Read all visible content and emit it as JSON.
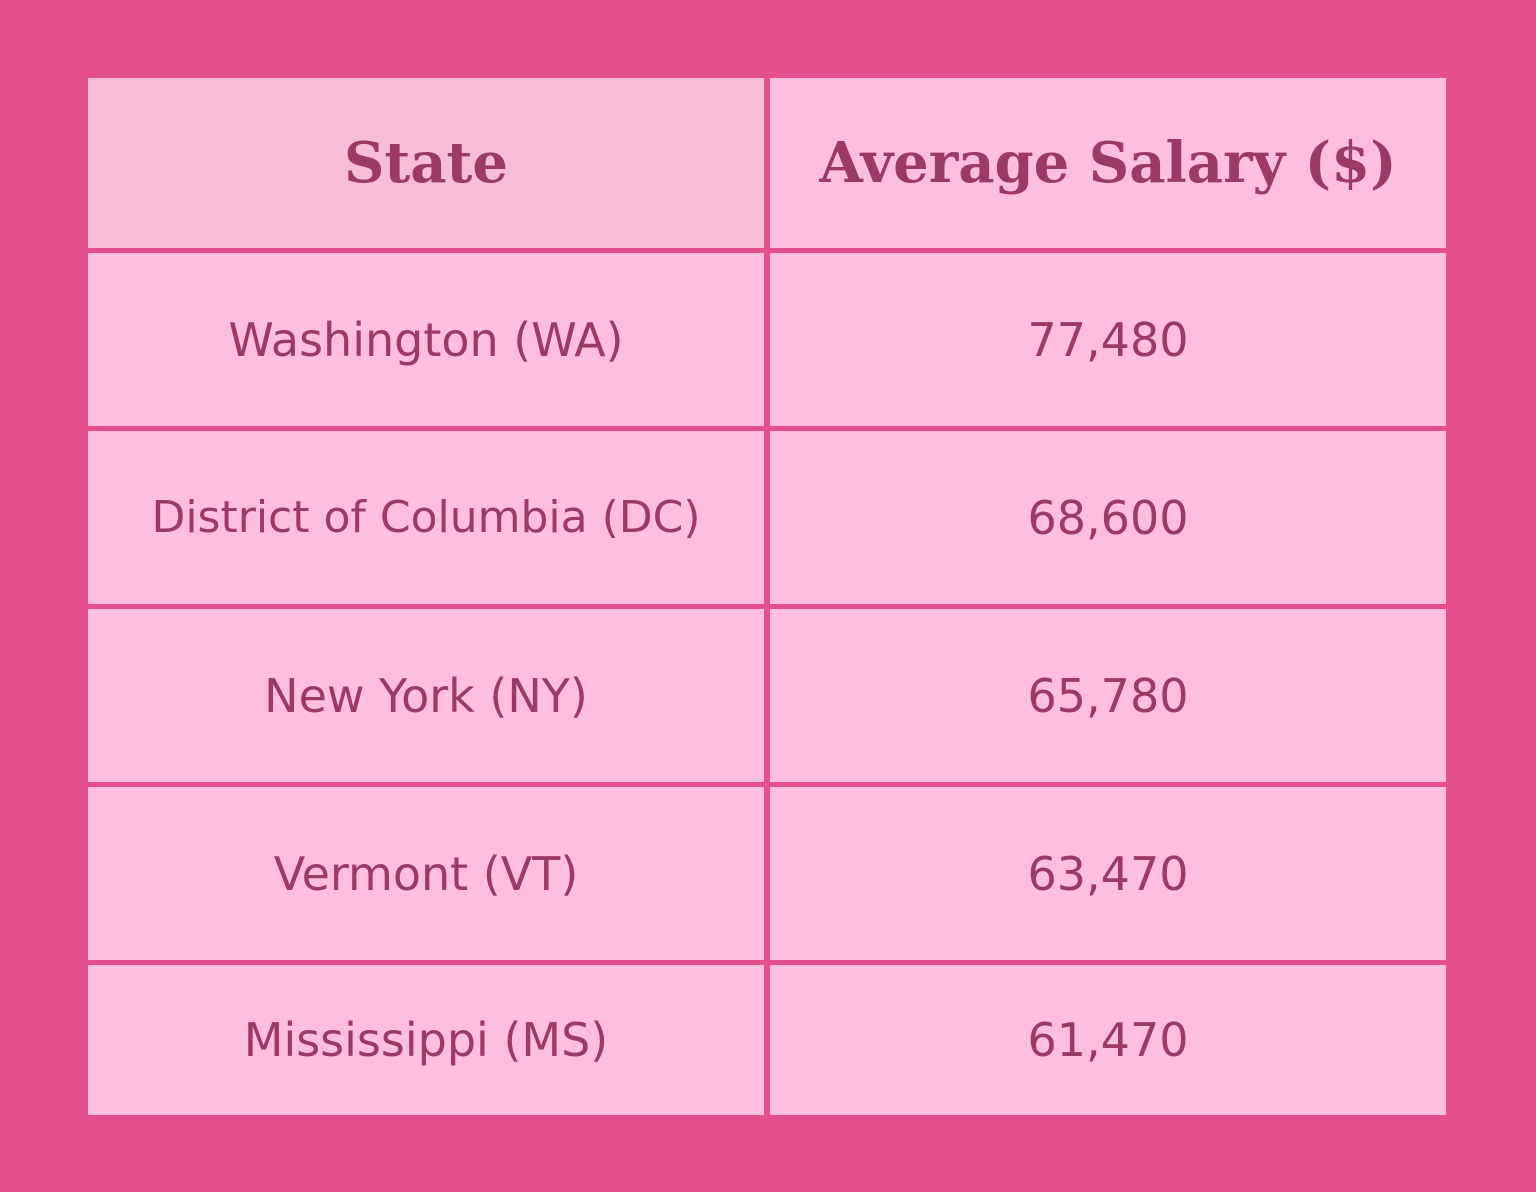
{
  "colors": {
    "background": "#e4508c",
    "cell": "#ffbedf",
    "header_state_cell": "#f7bcd6",
    "text": "#9c3a66"
  },
  "chart_data": {
    "type": "table",
    "columns": [
      "State",
      "Average Salary ($)"
    ],
    "rows": [
      {
        "state": "Washington (WA)",
        "salary": "77,480"
      },
      {
        "state": "District of Columbia (DC)",
        "salary": "68,600"
      },
      {
        "state": "New York (NY)",
        "salary": "65,780"
      },
      {
        "state": "Vermont (VT)",
        "salary": "63,470"
      },
      {
        "state": "Mississippi (MS)",
        "salary": "61,470"
      }
    ]
  }
}
